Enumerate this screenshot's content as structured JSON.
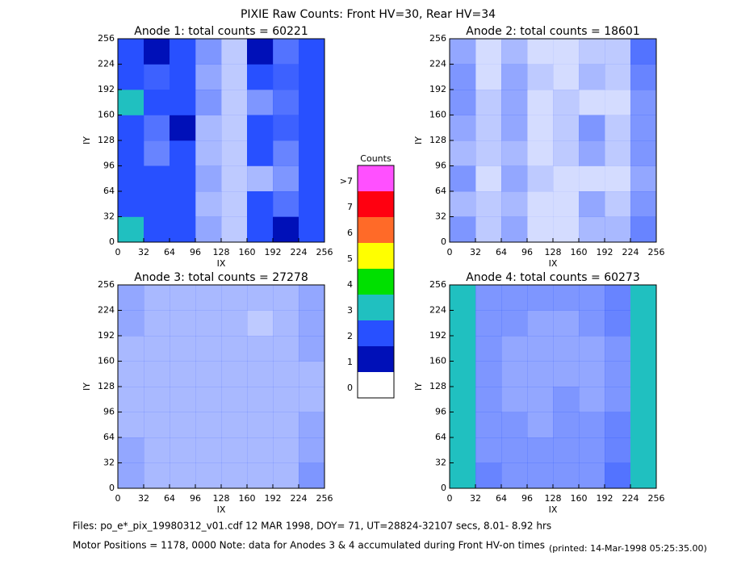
{
  "chart_data": {
    "type": "heatmap",
    "title": "PIXIE Raw Counts:  Front HV=30, Rear HV=34",
    "xlabel": "IX",
    "ylabel": "IY",
    "xlim": [
      0,
      256
    ],
    "ylim": [
      0,
      256
    ],
    "xticks": [
      0,
      32,
      64,
      96,
      128,
      160,
      192,
      224,
      256
    ],
    "yticks": [
      0,
      32,
      64,
      96,
      128,
      160,
      192,
      224,
      256
    ],
    "panels": [
      {
        "title": "Anode 1: total counts = 60221",
        "z": [
          [
            2.2,
            1.3,
            1.6,
            0.5,
            0.3,
            1.8,
            1.0,
            1.8
          ],
          [
            1.8,
            1.2,
            1.2,
            0.4,
            0.3,
            1.3,
            0.8,
            1.6
          ],
          [
            2.0,
            1.1,
            1.5,
            0.5,
            0.3,
            0.4,
            0.6,
            1.5
          ],
          [
            1.5,
            0.7,
            1.4,
            0.4,
            0.3,
            1.3,
            0.7,
            1.5
          ],
          [
            1.8,
            0.8,
            1.0,
            0.4,
            0.3,
            1.6,
            0.9,
            1.6
          ],
          [
            2.2,
            1.2,
            1.6,
            0.6,
            0.3,
            0.6,
            0.8,
            1.7
          ],
          [
            2.0,
            0.9,
            1.5,
            0.5,
            0.3,
            1.2,
            0.9,
            1.8
          ],
          [
            1.8,
            1.0,
            1.2,
            0.6,
            0.3,
            1.0,
            0.8,
            1.6
          ]
        ]
      },
      {
        "title": "Anode 2: total counts = 18601",
        "z": [
          [
            0.6,
            0.3,
            0.5,
            0.2,
            0.2,
            0.4,
            0.4,
            0.7
          ],
          [
            0.4,
            0.3,
            0.4,
            0.2,
            0.2,
            0.5,
            0.3,
            0.6
          ],
          [
            0.6,
            0.2,
            0.5,
            0.3,
            0.2,
            0.2,
            0.2,
            0.5
          ],
          [
            0.4,
            0.3,
            0.4,
            0.2,
            0.3,
            0.5,
            0.3,
            0.6
          ],
          [
            0.5,
            0.3,
            0.5,
            0.2,
            0.3,
            0.6,
            0.3,
            0.6
          ],
          [
            0.6,
            0.3,
            0.5,
            0.2,
            0.3,
            0.2,
            0.2,
            0.6
          ],
          [
            0.6,
            0.2,
            0.5,
            0.3,
            0.2,
            0.4,
            0.3,
            0.7
          ],
          [
            0.5,
            0.2,
            0.4,
            0.2,
            0.2,
            0.3,
            0.3,
            0.8
          ]
        ]
      },
      {
        "title": "Anode 3: total counts = 27278",
        "z": [
          [
            0.5,
            0.4,
            0.4,
            0.4,
            0.4,
            0.4,
            0.4,
            0.6
          ],
          [
            0.5,
            0.4,
            0.4,
            0.4,
            0.4,
            0.4,
            0.4,
            0.5
          ],
          [
            0.4,
            0.4,
            0.4,
            0.4,
            0.4,
            0.4,
            0.4,
            0.5
          ],
          [
            0.4,
            0.4,
            0.4,
            0.4,
            0.4,
            0.4,
            0.4,
            0.4
          ],
          [
            0.4,
            0.4,
            0.4,
            0.4,
            0.4,
            0.4,
            0.4,
            0.4
          ],
          [
            0.4,
            0.4,
            0.4,
            0.4,
            0.4,
            0.4,
            0.4,
            0.5
          ],
          [
            0.5,
            0.4,
            0.4,
            0.4,
            0.4,
            0.3,
            0.4,
            0.5
          ],
          [
            0.5,
            0.4,
            0.4,
            0.4,
            0.4,
            0.4,
            0.4,
            0.5
          ]
        ]
      },
      {
        "title": "Anode 4: total counts = 60273",
        "z": [
          [
            2.4,
            0.7,
            0.6,
            0.6,
            0.6,
            0.6,
            0.8,
            2.8
          ],
          [
            2.2,
            0.6,
            0.6,
            0.6,
            0.6,
            0.6,
            0.7,
            2.6
          ],
          [
            2.3,
            0.6,
            0.6,
            0.5,
            0.6,
            0.6,
            0.7,
            2.5
          ],
          [
            2.2,
            0.6,
            0.5,
            0.5,
            0.6,
            0.5,
            0.6,
            2.4
          ],
          [
            2.1,
            0.6,
            0.5,
            0.5,
            0.5,
            0.5,
            0.6,
            2.3
          ],
          [
            2.2,
            0.6,
            0.5,
            0.5,
            0.5,
            0.5,
            0.6,
            2.5
          ],
          [
            2.3,
            0.6,
            0.6,
            0.5,
            0.5,
            0.6,
            0.7,
            2.6
          ],
          [
            2.2,
            0.6,
            0.6,
            0.6,
            0.6,
            0.6,
            0.7,
            2.7
          ]
        ]
      }
    ],
    "colorbar": {
      "title": "Counts",
      "ticks": [
        0,
        1,
        2,
        3,
        4,
        5,
        6,
        7,
        {
          "value": 8,
          "label": ">7"
        }
      ],
      "colors": [
        "#ffffff",
        "#0010b8",
        "#2850ff",
        "#20c0c0",
        "#00e000",
        "#ffff00",
        "#ff6a28",
        "#ff0010",
        "#ff50ff"
      ]
    }
  },
  "footer": {
    "files": "Files: po_e*_pix_19980312_v01.cdf    12 MAR 1998, DOY= 71, UT=28824-32107 secs,  8.01- 8.92 hrs",
    "motor": "Motor Positions = 1178, 0000   Note: data for Anodes 3 & 4 accumulated during Front HV-on times",
    "printed": "(printed: 14-Mar-1998 05:25:35.00)"
  }
}
